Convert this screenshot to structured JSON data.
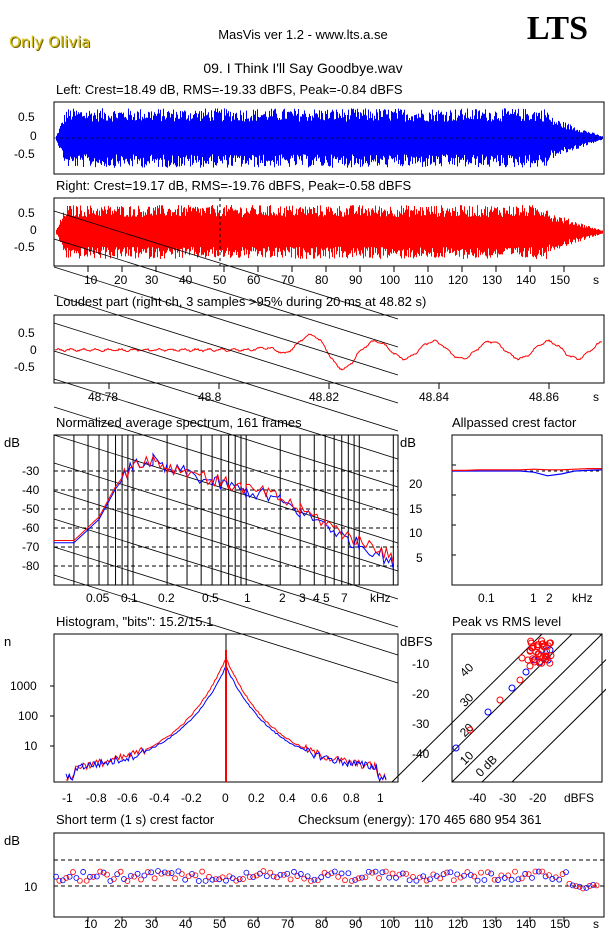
{
  "header": {
    "brand": "Only Olivia",
    "app": "MasVis ver 1.2 - www.lts.a.se",
    "logo": "LTS",
    "track": "09. I Think I'll Say Goodbye.wav"
  },
  "colors": {
    "left": "#0000ff",
    "right": "#ff0000",
    "grid": "#000000"
  },
  "chart_data": [
    {
      "type": "line",
      "title": "Left: Crest=18.49 dB, RMS=-19.33 dBFS, Peak=-0.84 dBFS",
      "series": [
        {
          "name": "Left",
          "color": "#0000ff"
        }
      ],
      "yticks": [
        "0.5",
        "0",
        "-0.5"
      ],
      "ylim": [
        -1,
        1
      ],
      "xlim": [
        0,
        160
      ]
    },
    {
      "type": "line",
      "title": "Right: Crest=19.17 dB, RMS=-19.76 dBFS, Peak=-0.58 dBFS",
      "series": [
        {
          "name": "Right",
          "color": "#ff0000"
        }
      ],
      "yticks": [
        "0.5",
        "0",
        "-0.5"
      ],
      "xticks": [
        "10",
        "20",
        "30",
        "40",
        "50",
        "60",
        "70",
        "80",
        "90",
        "100",
        "110",
        "120",
        "130",
        "140",
        "150",
        "s"
      ],
      "marker_at": 48.82,
      "ylim": [
        -1,
        1
      ],
      "xlim": [
        0,
        160
      ]
    },
    {
      "type": "line",
      "title": "Loudest part (right ch, 3 samples >95% during 20 ms at 48.82 s)",
      "yticks": [
        "0.5",
        "0",
        "-0.5"
      ],
      "xticks": [
        "48.78",
        "48.8",
        "48.82",
        "48.84",
        "48.86",
        "s"
      ],
      "xlim": [
        48.772,
        48.872
      ],
      "ylim": [
        -1,
        1
      ]
    },
    {
      "type": "line",
      "title": "Normalized average spectrum, 161 frames",
      "ylabel": "dB",
      "yticks": [
        "-30",
        "-40",
        "-50",
        "-60",
        "-70",
        "-80"
      ],
      "xticks": [
        "0.05",
        "0.1",
        "0.2",
        "0.5",
        "1",
        "2",
        "3",
        "4",
        "5",
        "7",
        "kHz"
      ],
      "x": [
        0.02,
        0.03,
        0.05,
        0.07,
        0.1,
        0.15,
        0.2,
        0.3,
        0.5,
        0.7,
        1,
        1.5,
        2,
        3,
        5,
        7,
        10,
        15,
        20
      ],
      "series": [
        {
          "name": "Left",
          "color": "#0000ff",
          "values": [
            -68,
            -68,
            -58,
            -45,
            -35,
            -33,
            -37,
            -38,
            -42,
            -44,
            -46,
            -48,
            -50,
            -55,
            -60,
            -65,
            -69,
            -72,
            -78
          ]
        },
        {
          "name": "Right",
          "color": "#ff0000",
          "values": [
            -67,
            -67,
            -57,
            -44,
            -34,
            -32,
            -36,
            -37,
            -41,
            -43,
            -45,
            -47,
            -49,
            -54,
            -59,
            -64,
            -67,
            -70,
            -76
          ]
        }
      ]
    },
    {
      "type": "line",
      "title": "Allpassed crest factor",
      "ylabel": "dB",
      "yticks": [
        "20",
        "15",
        "10",
        "5"
      ],
      "xticks": [
        "0.1",
        "1",
        "2",
        "kHz"
      ],
      "series": [
        {
          "name": "Left",
          "color": "#0000ff",
          "values": [
            19,
            19,
            19,
            19,
            19,
            19,
            18.8,
            18.2,
            18.5,
            19,
            19.1,
            19.2
          ]
        },
        {
          "name": "Right",
          "color": "#ff0000",
          "values": [
            19.1,
            19.1,
            19.2,
            19.2,
            19.2,
            19.2,
            19.3,
            19.2,
            19.2,
            19.3,
            19.4,
            19.4
          ]
        }
      ]
    },
    {
      "type": "line",
      "title": "Histogram, \"bits\": 15.2/15.1",
      "ylabel": "n",
      "yticks": [
        "1000",
        "100",
        "10"
      ],
      "xticks": [
        "-1",
        "-0.8",
        "-0.6",
        "-0.4",
        "-0.2",
        "0",
        "0.2",
        "0.4",
        "0.6",
        "0.8",
        "1"
      ]
    },
    {
      "type": "scatter",
      "title": "Peak vs RMS level",
      "ylabel": "dBFS",
      "yticks": [
        "-10",
        "-20",
        "-30",
        "-40"
      ],
      "xticks": [
        "-40",
        "-30",
        "-20",
        "dBFS"
      ],
      "diagonal_labels": [
        "40",
        "30",
        "20",
        "10",
        "0 dB"
      ]
    },
    {
      "type": "scatter",
      "title": "Short term (1 s) crest factor",
      "subtitle": "Checksum (energy):   170 465 680 954 361",
      "ylabel": "dB",
      "yticks": [
        "10"
      ],
      "xticks": [
        "10",
        "20",
        "30",
        "40",
        "50",
        "60",
        "70",
        "80",
        "90",
        "100",
        "110",
        "120",
        "130",
        "140",
        "150",
        "s"
      ]
    }
  ]
}
